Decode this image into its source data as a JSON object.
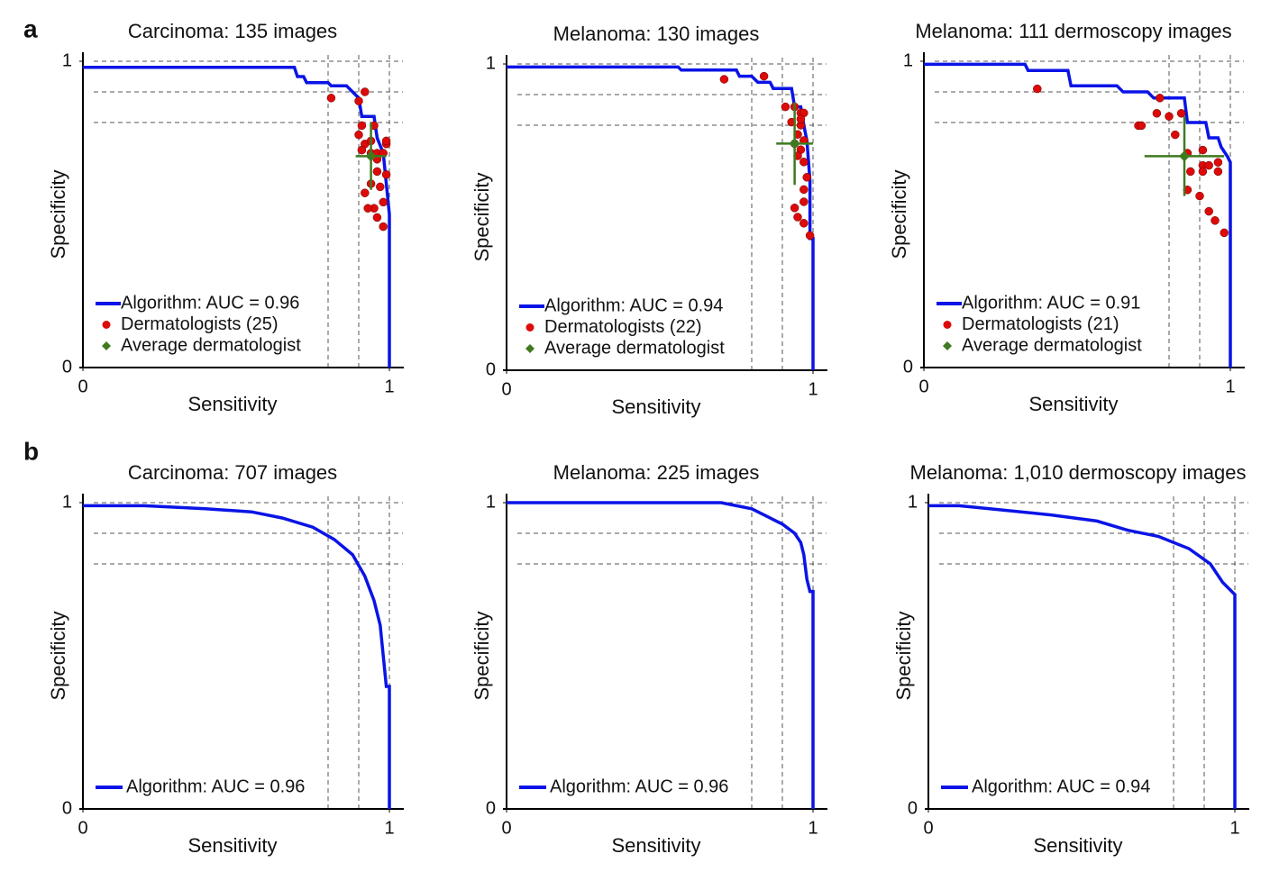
{
  "panel_labels": [
    "a",
    "b"
  ],
  "chart_data": [
    {
      "type": "roc",
      "title": "Carcinoma: 135 images",
      "xlabel": "Sensitivity",
      "ylabel": "Specificity",
      "xlim": [
        0,
        1
      ],
      "ylim": [
        0,
        1
      ],
      "xticks": [
        0,
        1
      ],
      "yticks": [
        0,
        1
      ],
      "ref_x": [
        0.8,
        0.9,
        1
      ],
      "ref_y": [
        0.8,
        0.9,
        1
      ],
      "series": [
        {
          "name": "Algorithm: AUC = 0.96",
          "color": "#0a14e6",
          "type": "line",
          "x": [
            0,
            0.69,
            0.7,
            0.72,
            0.73,
            0.8,
            0.81,
            0.86,
            0.88,
            0.9,
            0.91,
            0.95,
            0.96,
            0.98,
            0.99,
            1,
            1
          ],
          "y": [
            0.98,
            0.98,
            0.95,
            0.95,
            0.93,
            0.93,
            0.92,
            0.92,
            0.9,
            0.88,
            0.82,
            0.82,
            0.75,
            0.7,
            0.6,
            0.5,
            0
          ]
        },
        {
          "name": "Dermatologists (25)",
          "color": "#dd0a0a",
          "type": "scatter",
          "x": [
            0.81,
            0.9,
            0.92,
            0.91,
            0.9,
            0.92,
            0.95,
            0.94,
            0.96,
            0.98,
            0.99,
            0.99,
            0.96,
            0.94,
            0.92,
            0.95,
            0.98,
            0.96,
            0.98,
            0.99,
            0.91,
            0.96,
            0.94,
            0.97,
            0.93
          ],
          "y": [
            0.88,
            0.87,
            0.9,
            0.79,
            0.76,
            0.73,
            0.79,
            0.7,
            0.7,
            0.7,
            0.73,
            0.74,
            0.64,
            0.6,
            0.57,
            0.52,
            0.54,
            0.49,
            0.46,
            0.63,
            0.71,
            0.68,
            0.74,
            0.59,
            0.52
          ]
        },
        {
          "name": "Average dermatologist",
          "color": "#3f7a1f",
          "type": "errorpoint",
          "x": [
            0.94
          ],
          "y": [
            0.69
          ],
          "xerr": [
            0.05
          ],
          "yerr": [
            0.11
          ]
        }
      ]
    },
    {
      "type": "roc",
      "title": "Melanoma: 130 images",
      "xlabel": "Sensitivity",
      "ylabel": "Specificity",
      "xlim": [
        0,
        1
      ],
      "ylim": [
        0,
        1
      ],
      "xticks": [
        0,
        1
      ],
      "yticks": [
        0,
        1
      ],
      "ref_x": [
        0.8,
        0.9,
        1
      ],
      "ref_y": [
        0.8,
        0.9,
        1
      ],
      "series": [
        {
          "name": "Algorithm: AUC = 0.94",
          "color": "#0a14e6",
          "type": "line",
          "x": [
            0,
            0.56,
            0.57,
            0.75,
            0.76,
            0.8,
            0.82,
            0.86,
            0.87,
            0.93,
            0.94,
            0.96,
            0.97,
            0.98,
            0.99,
            0.99,
            1,
            1
          ],
          "y": [
            0.99,
            0.99,
            0.98,
            0.98,
            0.96,
            0.96,
            0.94,
            0.94,
            0.92,
            0.92,
            0.86,
            0.86,
            0.8,
            0.75,
            0.62,
            0.43,
            0.43,
            0
          ]
        },
        {
          "name": "Dermatologists (22)",
          "color": "#dd0a0a",
          "type": "scatter",
          "x": [
            0.71,
            0.84,
            0.91,
            0.94,
            0.96,
            0.97,
            0.93,
            0.96,
            0.95,
            0.97,
            0.94,
            0.96,
            0.97,
            0.98,
            0.97,
            0.97,
            0.95,
            0.97,
            0.99,
            0.94,
            0.96,
            0.95
          ],
          "y": [
            0.95,
            0.96,
            0.86,
            0.86,
            0.84,
            0.84,
            0.81,
            0.8,
            0.77,
            0.75,
            0.74,
            0.72,
            0.68,
            0.63,
            0.59,
            0.55,
            0.5,
            0.48,
            0.44,
            0.53,
            0.82,
            0.7
          ]
        },
        {
          "name": "Average dermatologist",
          "color": "#3f7a1f",
          "type": "errorpoint",
          "x": [
            0.94
          ],
          "y": [
            0.74
          ],
          "xerr": [
            0.06
          ],
          "yerr": [
            0.135
          ]
        }
      ]
    },
    {
      "type": "roc",
      "title": "Melanoma: 111 dermoscopy images",
      "xlabel": "Sensitivity",
      "ylabel": "Specificity",
      "xlim": [
        0,
        1
      ],
      "ylim": [
        0,
        1
      ],
      "xticks": [
        0,
        1
      ],
      "yticks": [
        0,
        1
      ],
      "ref_x": [
        0.8,
        0.9,
        1
      ],
      "ref_y": [
        0.8,
        0.9,
        1
      ],
      "series": [
        {
          "name": "Algorithm: AUC = 0.91",
          "color": "#0a14e6",
          "type": "line",
          "x": [
            0,
            0.33,
            0.34,
            0.47,
            0.48,
            0.63,
            0.65,
            0.73,
            0.75,
            0.85,
            0.86,
            0.92,
            0.93,
            0.96,
            0.97,
            0.99,
            1,
            1
          ],
          "y": [
            0.99,
            0.99,
            0.97,
            0.97,
            0.92,
            0.92,
            0.9,
            0.9,
            0.88,
            0.88,
            0.8,
            0.8,
            0.75,
            0.75,
            0.72,
            0.69,
            0.67,
            0
          ]
        },
        {
          "name": "Dermatologists (21)",
          "color": "#dd0a0a",
          "type": "scatter",
          "x": [
            0.37,
            0.7,
            0.71,
            0.76,
            0.77,
            0.8,
            0.82,
            0.84,
            0.86,
            0.87,
            0.91,
            0.91,
            0.91,
            0.93,
            0.96,
            0.96,
            0.86,
            0.9,
            0.93,
            0.95,
            0.98
          ],
          "y": [
            0.91,
            0.79,
            0.79,
            0.83,
            0.88,
            0.82,
            0.76,
            0.83,
            0.7,
            0.64,
            0.66,
            0.71,
            0.64,
            0.66,
            0.67,
            0.64,
            0.58,
            0.56,
            0.51,
            0.48,
            0.44
          ]
        },
        {
          "name": "Average dermatologist",
          "color": "#3f7a1f",
          "type": "errorpoint",
          "x": [
            0.85
          ],
          "y": [
            0.69
          ],
          "xerr": [
            0.13
          ],
          "yerr": [
            0.13
          ]
        }
      ]
    },
    {
      "type": "roc",
      "title": "Carcinoma: 707 images",
      "xlabel": "Sensitivity",
      "ylabel": "Specificity",
      "xlim": [
        0,
        1
      ],
      "ylim": [
        0,
        1
      ],
      "xticks": [
        0,
        1
      ],
      "yticks": [
        0,
        1
      ],
      "ref_x": [
        0.8,
        0.9,
        1
      ],
      "ref_y": [
        0.8,
        0.9,
        1
      ],
      "series": [
        {
          "name": "Algorithm: AUC = 0.96",
          "color": "#0a14e6",
          "type": "line",
          "x": [
            0,
            0.2,
            0.4,
            0.55,
            0.65,
            0.75,
            0.82,
            0.88,
            0.92,
            0.95,
            0.97,
            0.98,
            0.99,
            1,
            1
          ],
          "y": [
            0.99,
            0.99,
            0.98,
            0.97,
            0.95,
            0.92,
            0.88,
            0.83,
            0.76,
            0.68,
            0.6,
            0.5,
            0.4,
            0.4,
            0
          ]
        }
      ]
    },
    {
      "type": "roc",
      "title": "Melanoma: 225 images",
      "xlabel": "Sensitivity",
      "ylabel": "Specificity",
      "xlim": [
        0,
        1
      ],
      "ylim": [
        0,
        1
      ],
      "xticks": [
        0,
        1
      ],
      "yticks": [
        0,
        1
      ],
      "ref_x": [
        0.8,
        0.9,
        1
      ],
      "ref_y": [
        0.8,
        0.9,
        1
      ],
      "series": [
        {
          "name": "Algorithm: AUC = 0.96",
          "color": "#0a14e6",
          "type": "line",
          "x": [
            0,
            0.7,
            0.75,
            0.8,
            0.84,
            0.88,
            0.9,
            0.94,
            0.96,
            0.97,
            0.98,
            0.99,
            1,
            1
          ],
          "y": [
            1,
            1,
            0.99,
            0.98,
            0.96,
            0.94,
            0.93,
            0.9,
            0.87,
            0.83,
            0.75,
            0.71,
            0.71,
            0
          ]
        }
      ]
    },
    {
      "type": "roc",
      "title": "Melanoma: 1,010 dermoscopy images",
      "xlabel": "Sensitivity",
      "ylabel": "Specificity",
      "xlim": [
        0,
        1
      ],
      "ylim": [
        0,
        1
      ],
      "xticks": [
        0,
        1
      ],
      "yticks": [
        0,
        1
      ],
      "ref_x": [
        0.8,
        0.9,
        1
      ],
      "ref_y": [
        0.8,
        0.9,
        1
      ],
      "series": [
        {
          "name": "Algorithm: AUC = 0.94",
          "color": "#0a14e6",
          "type": "line",
          "x": [
            0,
            0.1,
            0.2,
            0.4,
            0.55,
            0.65,
            0.75,
            0.85,
            0.92,
            0.96,
            0.99,
            1,
            1
          ],
          "y": [
            0.99,
            0.99,
            0.98,
            0.96,
            0.94,
            0.91,
            0.89,
            0.85,
            0.8,
            0.74,
            0.71,
            0.7,
            0
          ]
        }
      ]
    }
  ]
}
